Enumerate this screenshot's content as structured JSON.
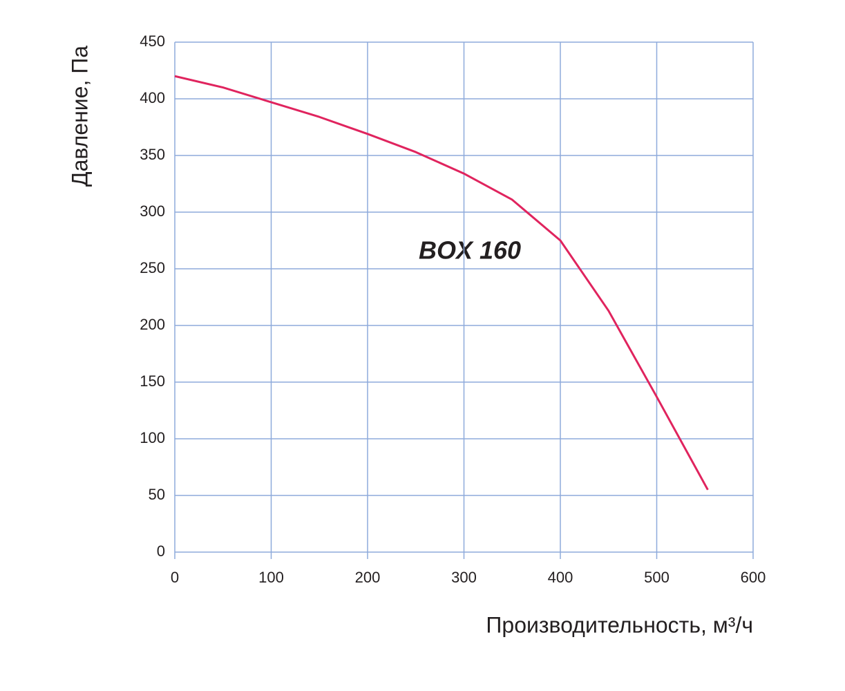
{
  "chart_data": {
    "type": "line",
    "xlabel": "Производительность, м³/ч",
    "ylabel": "Давление, Па",
    "annotation": "BOX 160",
    "x": [
      0,
      50,
      100,
      150,
      200,
      250,
      300,
      350,
      400,
      450,
      500,
      553
    ],
    "values": [
      420,
      410,
      397,
      384,
      369,
      353,
      334,
      311,
      275,
      213,
      137,
      55
    ],
    "color": "#e0245e",
    "xlim": [
      0,
      600
    ],
    "xticks": [
      0,
      100,
      200,
      300,
      400,
      500,
      600
    ],
    "ylim": [
      0,
      450
    ],
    "yticks": [
      0,
      50,
      100,
      150,
      200,
      250,
      300,
      350,
      400,
      450
    ],
    "grid": true
  }
}
